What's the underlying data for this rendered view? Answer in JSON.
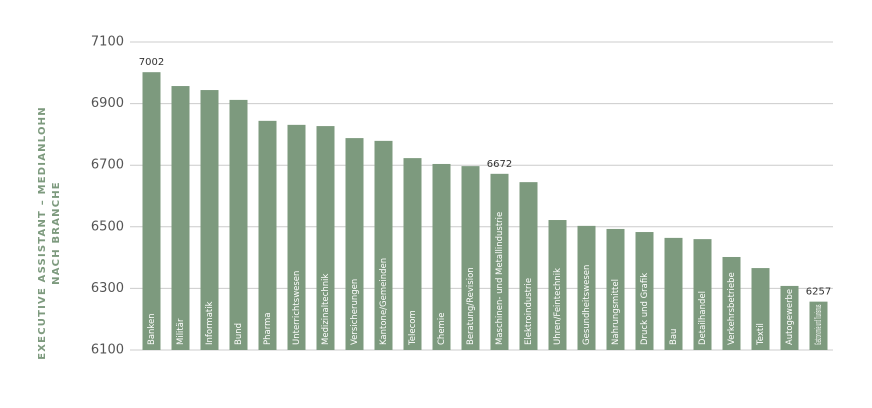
{
  "chart_data": {
    "type": "bar",
    "ylabel": [
      "EXECUTIVE ASSISTANT – MEDIANLOHN",
      "NACH BRANCHE"
    ],
    "categories": [
      "Banken",
      "Militär",
      "Informatik",
      "Bund",
      "Pharma",
      "Unterrichtswesen",
      "Medizinaltechnik",
      "Versicherungen",
      "Kantone/Gemeinden",
      "Telecom",
      "Chemie",
      "Beratung/Revision",
      "Maschinen- und Metallindustrie",
      "Elektroindustrie",
      "Uhren/Feintechnik",
      "Gesundheitswesen",
      "Nahrungsmittel",
      "Druck und Grafik",
      "Bau",
      "Detailhandel",
      "Verkehrsbetriebe",
      "Textil",
      "Autogewerbe",
      "Gastronomie und Tourismus"
    ],
    "values": [
      7002,
      6957,
      6944,
      6912,
      6844,
      6831,
      6827,
      6788,
      6779,
      6723,
      6704,
      6697,
      6672,
      6645,
      6522,
      6503,
      6493,
      6483,
      6464,
      6460,
      6402,
      6366,
      6308,
      6257
    ],
    "value_labels": [
      "7002",
      null,
      null,
      null,
      null,
      null,
      null,
      null,
      null,
      null,
      null,
      null,
      "6672",
      null,
      null,
      null,
      null,
      null,
      null,
      null,
      null,
      null,
      null,
      "6257"
    ],
    "color": "#7d9a7e",
    "ylim": [
      6100,
      7100
    ],
    "yticks": [
      6100,
      6300,
      6500,
      6700,
      6900,
      7100
    ],
    "grid": true
  }
}
